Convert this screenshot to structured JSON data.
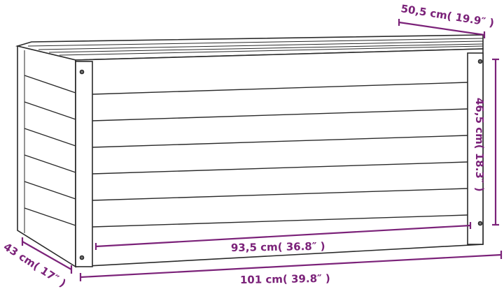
{
  "colors": {
    "dimension": "#7b2279",
    "outline": "#2a2a2a",
    "fill": "#ffffff"
  },
  "dimensions": {
    "depth_top": "50,5 cm( 19.9″ )",
    "height": "46,5 cm( 18.3″ )",
    "inner_width": "93,5 cm( 36.8″ )",
    "total_width": "101 cm( 39.8″ )",
    "depth_side": "43 cm( 17″ )"
  }
}
